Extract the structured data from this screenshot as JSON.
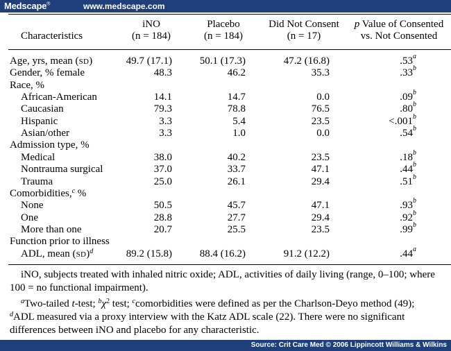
{
  "header": {
    "brand": "Medscape",
    "brand_mark": "®",
    "site": "www.medscape.com"
  },
  "table": {
    "col_headers": {
      "characteristics": "Characteristics",
      "ino": [
        "iNO",
        "(n = 184)"
      ],
      "placebo": [
        "Placebo",
        "(n = 184)"
      ],
      "not_consent": [
        "Did Not Consent",
        "(n = 17)"
      ],
      "pvalue_italic": "p",
      "pvalue_rest": " Value of Consented",
      "pvalue_line2": "vs. Not Consented"
    },
    "rows": [
      {
        "label": "Age, yrs, mean (",
        "label_sc": "SD",
        "label_end": ")",
        "ino": "49.7 (17.1)",
        "placebo": "50.1 (17.3)",
        "nc": "47.2 (16.8)",
        "p": ".53",
        "p_sup": "a"
      },
      {
        "label": "Gender, % female",
        "ino": "48.3",
        "placebo": "46.2",
        "nc": "35.3",
        "p": ".33",
        "p_sup": "b"
      },
      {
        "label": "Race, %"
      },
      {
        "label": "African-American",
        "indent": true,
        "ino": "14.1",
        "placebo": "14.7",
        "nc": "0.0",
        "p": ".09",
        "p_sup": "b"
      },
      {
        "label": "Caucasian",
        "indent": true,
        "ino": "79.3",
        "placebo": "78.8",
        "nc": "76.5",
        "p": ".80",
        "p_sup": "b"
      },
      {
        "label": "Hispanic",
        "indent": true,
        "ino": "3.3",
        "placebo": "5.4",
        "nc": "23.5",
        "p": "<.001",
        "p_sup": "b"
      },
      {
        "label": "Asian/other",
        "indent": true,
        "ino": "3.3",
        "placebo": "1.0",
        "nc": "0.0",
        "p": ".54",
        "p_sup": "b"
      },
      {
        "label": "Admission type, %"
      },
      {
        "label": "Medical",
        "indent": true,
        "ino": "38.0",
        "placebo": "40.2",
        "nc": "23.5",
        "p": ".18",
        "p_sup": "b"
      },
      {
        "label": "Nontrauma surgical",
        "indent": true,
        "ino": "37.0",
        "placebo": "33.7",
        "nc": "47.1",
        "p": ".44",
        "p_sup": "b"
      },
      {
        "label": "Trauma",
        "indent": true,
        "ino": "25.0",
        "placebo": "26.1",
        "nc": "29.4",
        "p": ".51",
        "p_sup": "b"
      },
      {
        "label": "Comorbidities,",
        "label_sup": "c",
        "label_end": " %"
      },
      {
        "label": "None",
        "indent": true,
        "ino": "50.5",
        "placebo": "45.7",
        "nc": "47.1",
        "p": ".93",
        "p_sup": "b"
      },
      {
        "label": "One",
        "indent": true,
        "ino": "28.8",
        "placebo": "27.7",
        "nc": "29.4",
        "p": ".92",
        "p_sup": "b"
      },
      {
        "label": "More than one",
        "indent": true,
        "ino": "20.7",
        "placebo": "25.5",
        "nc": "23.5",
        "p": ".99",
        "p_sup": "b"
      },
      {
        "label": "Function prior to illness"
      },
      {
        "label": "ADL, mean (",
        "label_sc": "SD",
        "label_end": ")",
        "label_end_sup": "d",
        "indent": true,
        "ino": "89.2 (15.8)",
        "placebo": "88.4 (16.2)",
        "nc": "91.2 (12.2)",
        "p": ".44",
        "p_sup": "a"
      }
    ]
  },
  "footnotes": {
    "abbrev_line1": "iNO, subjects treated with inhaled nitric oxide; ADL, activities of daily living (range, 0–100; where",
    "abbrev_line2": "100 = no functional impairment).",
    "note_a_mark": "a",
    "note_a_text": "Two-tailed ",
    "note_a_t": "t",
    "note_a_after": "-test; ",
    "note_b_mark": "b",
    "note_b_chi": "χ",
    "note_b_sq": "2",
    "note_b_text": " test; ",
    "note_c_mark": "c",
    "note_c_text": "comorbidities were defined as per the Charlson-Deyo method (49);",
    "note_d_mark": "d",
    "note_d_text": "ADL measured via a proxy interview with the Katz ADL scale (22). There were no significant",
    "note_line4": "differences between iNO and placebo for any characteristic."
  },
  "footer": {
    "source": "Source: Crit Care Med © 2006 Lippincott Williams & Wilkins"
  }
}
